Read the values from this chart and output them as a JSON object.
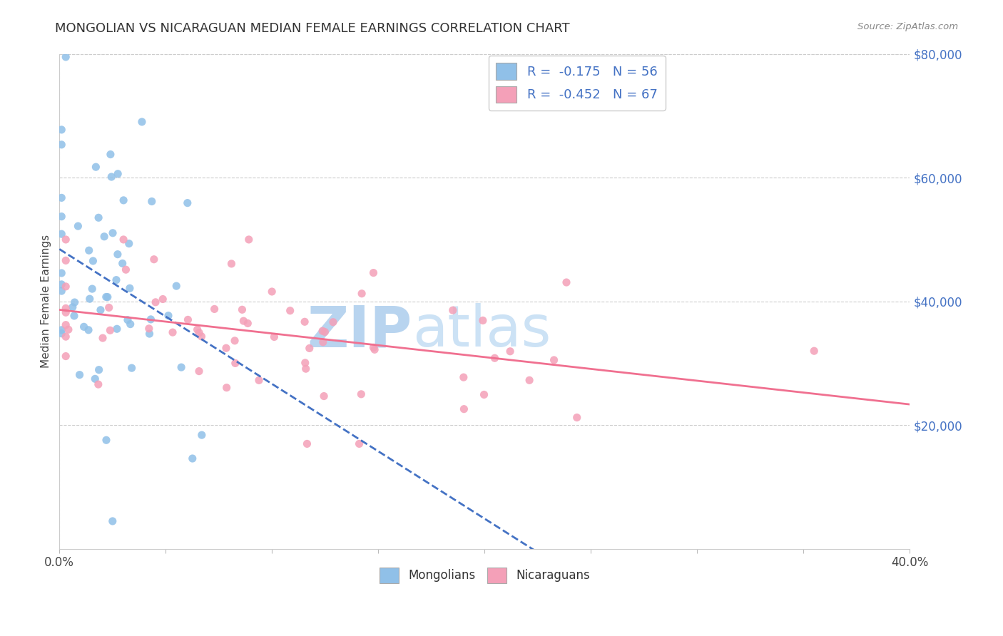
{
  "title": "MONGOLIAN VS NICARAGUAN MEDIAN FEMALE EARNINGS CORRELATION CHART",
  "source": "Source: ZipAtlas.com",
  "ylabel": "Median Female Earnings",
  "x_min": 0.0,
  "x_max": 0.4,
  "y_min": 0,
  "y_max": 80000,
  "mongolian_color": "#90c0e8",
  "nicaraguan_color": "#f4a0b8",
  "mongolian_line_color": "#4472c4",
  "nicaraguan_line_color": "#f07090",
  "watermark_zip_color": "#c5ddf5",
  "watermark_atlas_color": "#d8eaf8",
  "background_color": "#ffffff",
  "grid_color": "#cccccc",
  "right_tick_color": "#4472c4",
  "legend_r_color": "#4472c4",
  "legend_n_color": "#333333"
}
